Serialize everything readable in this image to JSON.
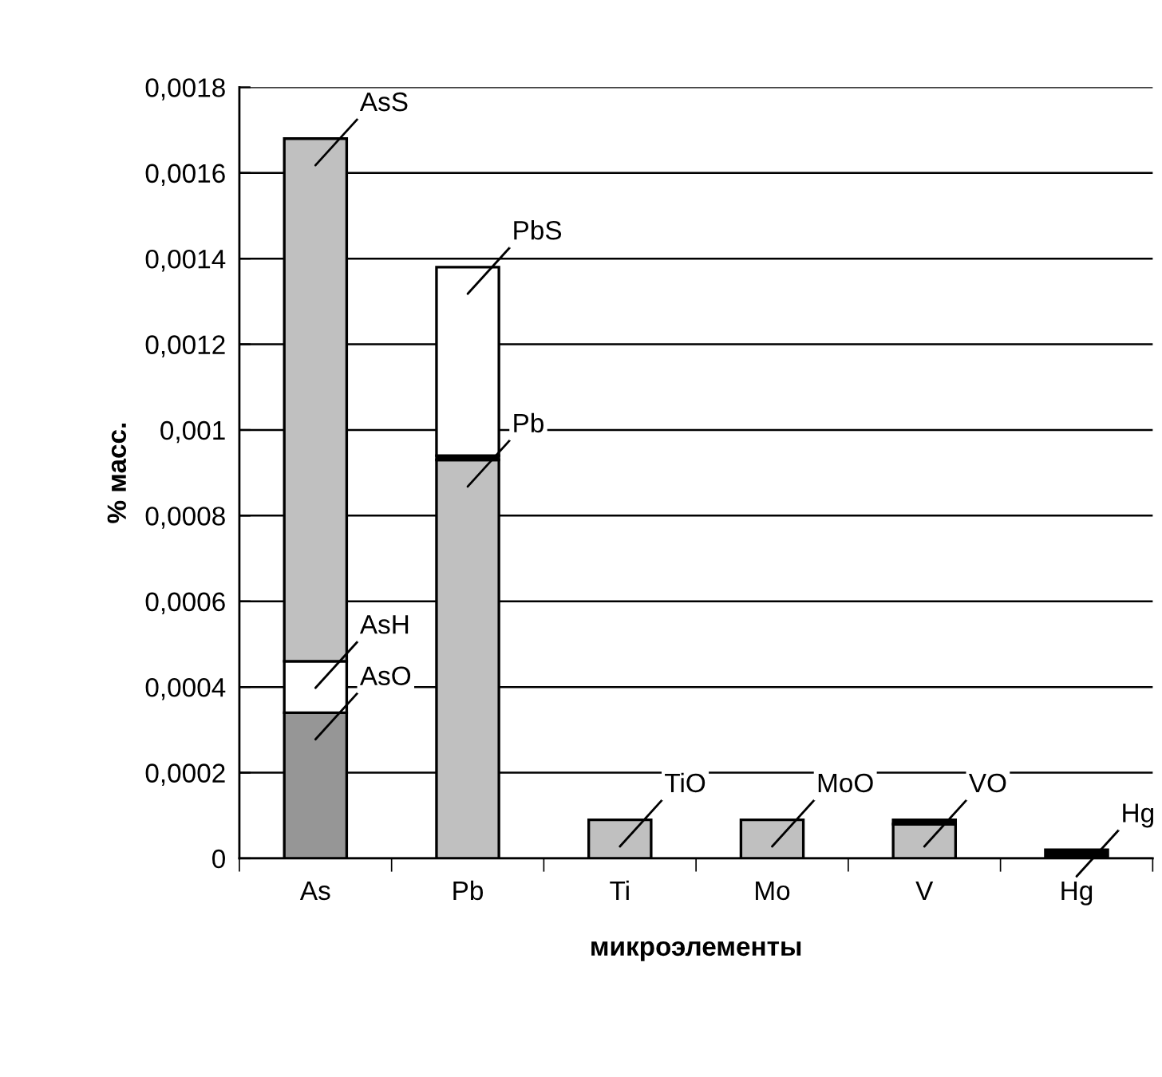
{
  "chart_data": {
    "type": "bar",
    "stacked": true,
    "xlabel": "микроэлементы",
    "ylabel": "% масс.",
    "categories": [
      "As",
      "Pb",
      "Ti",
      "Mo",
      "V",
      "Hg"
    ],
    "series": [
      {
        "colors": [
          "#969696",
          "#c0c0c0",
          "#c0c0c0",
          "#c0c0c0",
          "#c0c0c0",
          "#000000"
        ],
        "values": [
          0.00034,
          0.00093,
          9e-05,
          9e-05,
          8e-05,
          2e-05
        ]
      },
      {
        "colors": [
          "#ffffff",
          "#000000",
          "#c0c0c0",
          "#c0c0c0",
          "#000000",
          "#000000"
        ],
        "values": [
          0.00012,
          1e-05,
          null,
          null,
          1e-05,
          null
        ]
      },
      {
        "colors": [
          "#c0c0c0",
          "#ffffff",
          "#c0c0c0",
          "#c0c0c0",
          "#c0c0c0",
          "#c0c0c0"
        ],
        "values": [
          0.00122,
          0.00044,
          null,
          null,
          null,
          null
        ]
      }
    ],
    "ylim": [
      0,
      0.0018
    ],
    "yticks": [
      0,
      {
        "value": 0.0002,
        "label": "0,0002"
      },
      {
        "value": 0.0004,
        "label": "0,0004"
      },
      {
        "value": 0.0006,
        "label": "0,0006"
      },
      {
        "value": 0.0008,
        "label": "0,0008"
      },
      {
        "value": 0.001,
        "label": "0,001"
      },
      {
        "value": 0.0012,
        "label": "0,0012"
      },
      {
        "value": 0.0014,
        "label": "0,0014"
      },
      {
        "value": 0.0016,
        "label": "0,0016"
      },
      {
        "value": 0.0018,
        "label": "0,0018"
      }
    ],
    "grid": "y",
    "annotations": [
      {
        "text": "AsS",
        "x": "As",
        "y": 0.00168
      },
      {
        "text": "AsH",
        "x": "As",
        "y": 0.00046
      },
      {
        "text": "AsO",
        "x": "As",
        "y": 0.00034
      },
      {
        "text": "PbS",
        "x": "Pb",
        "y": 0.00138
      },
      {
        "text": "Pb",
        "x": "Pb",
        "y": 0.00093
      },
      {
        "text": "TiO",
        "x": "Ti",
        "y": 9e-05
      },
      {
        "text": "MoO",
        "x": "Mo",
        "y": 9e-05
      },
      {
        "text": "VO",
        "x": "V",
        "y": 9e-05
      },
      {
        "text": "Hg",
        "x": "Hg",
        "y": 2e-05
      }
    ]
  }
}
